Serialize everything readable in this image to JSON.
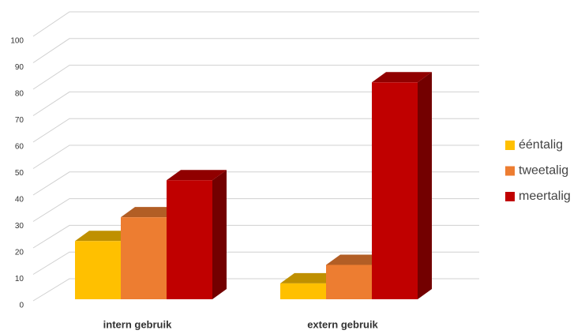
{
  "chart_data": {
    "type": "bar3d",
    "categories": [
      "intern gebruik",
      "extern gebruik"
    ],
    "series": [
      {
        "name": "ééntalig",
        "color": "#ffc000",
        "values": [
          22,
          6
        ]
      },
      {
        "name": "tweetalig",
        "color": "#ed7d31",
        "values": [
          31,
          13
        ]
      },
      {
        "name": "meertalig",
        "color": "#c00000",
        "values": [
          45,
          82
        ]
      }
    ],
    "ylim": [
      0,
      100
    ],
    "yticks": [
      0,
      10,
      20,
      30,
      40,
      50,
      60,
      70,
      80,
      90,
      100
    ],
    "grid": true,
    "legend": "right"
  }
}
